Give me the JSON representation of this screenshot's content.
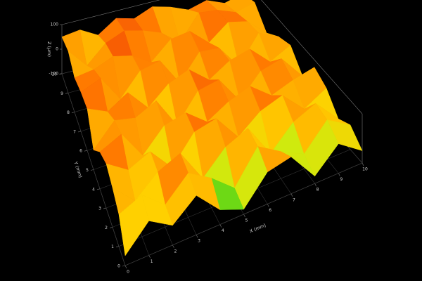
{
  "chart_data": {
    "type": "surface3d",
    "x_label": "X (mm)",
    "y_label": "Y (mm)",
    "z_label": "Z (µm)",
    "xlim": [
      0,
      10
    ],
    "ylim": [
      0,
      10
    ],
    "zlim": [
      -100,
      100
    ],
    "xticks": [
      0,
      1,
      2,
      3,
      4,
      5,
      6,
      7,
      8,
      9,
      10
    ],
    "yticks": [
      0,
      1,
      2,
      3,
      4,
      5,
      6,
      7,
      8,
      9,
      10
    ],
    "zticks": [
      100,
      0,
      -100
    ],
    "x": [
      0,
      1,
      2,
      3,
      4,
      5,
      6,
      7,
      8,
      9,
      10
    ],
    "y": [
      0,
      1,
      2,
      3,
      4,
      5,
      6,
      7,
      8,
      9,
      10
    ],
    "z": [
      [
        -60,
        40,
        -20,
        60,
        -40,
        -80,
        30,
        50,
        -70,
        20,
        -50
      ],
      [
        30,
        70,
        -10,
        80,
        20,
        -60,
        70,
        10,
        -40,
        60,
        0
      ],
      [
        60,
        -30,
        50,
        90,
        -50,
        40,
        80,
        -60,
        30,
        70,
        -30
      ],
      [
        80,
        20,
        60,
        -40,
        70,
        90,
        -20,
        50,
        80,
        -10,
        40
      ],
      [
        50,
        90,
        -30,
        60,
        80,
        10,
        60,
        90,
        20,
        50,
        70
      ],
      [
        -20,
        70,
        50,
        90,
        -40,
        70,
        85,
        -30,
        60,
        80,
        -20
      ],
      [
        70,
        30,
        80,
        -10,
        60,
        90,
        20,
        70,
        90,
        10,
        50
      ],
      [
        60,
        90,
        -20,
        70,
        85,
        -30,
        70,
        60,
        -40,
        70,
        30
      ],
      [
        40,
        50,
        80,
        60,
        10,
        80,
        90,
        20,
        80,
        60,
        -10
      ],
      [
        70,
        -10,
        60,
        90,
        70,
        40,
        -20,
        80,
        70,
        40,
        60
      ],
      [
        50,
        60,
        20,
        70,
        50,
        80,
        60,
        30,
        50,
        20,
        40
      ]
    ],
    "colorscale": [
      "#1428ff",
      "#12c41a",
      "#c8ee10",
      "#ffd000",
      "#ff7a00",
      "#e8200a"
    ],
    "grid": true
  }
}
